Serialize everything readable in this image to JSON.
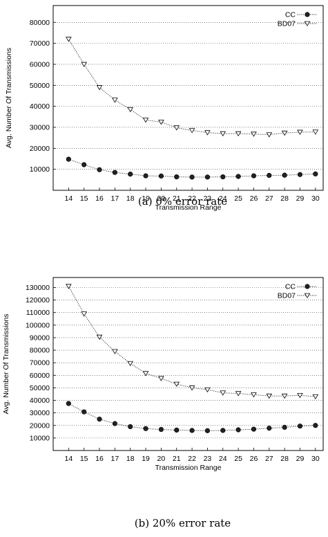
{
  "chart_data": [
    {
      "type": "line",
      "caption": "(a) 0% error rate",
      "xlabel": "Transmission Range",
      "ylabel": "Avg. Number Of Transmissions",
      "x": [
        14,
        15,
        16,
        17,
        18,
        19,
        20,
        21,
        22,
        23,
        24,
        25,
        26,
        27,
        28,
        29,
        30
      ],
      "xlim": [
        13,
        30.5
      ],
      "ylim": [
        0,
        88000
      ],
      "yticks": [
        10000,
        20000,
        30000,
        40000,
        50000,
        60000,
        70000,
        80000
      ],
      "grid": "horizontal dotted",
      "legend_position": "top-right",
      "series": [
        {
          "name": "CC",
          "marker": "circle",
          "values": [
            14800,
            12200,
            9800,
            8500,
            7700,
            6900,
            6800,
            6400,
            6300,
            6300,
            6400,
            6600,
            6900,
            7100,
            7200,
            7500,
            7800
          ]
        },
        {
          "name": "BD07",
          "marker": "triangle-down",
          "values": [
            72000,
            60000,
            49000,
            43000,
            38500,
            33500,
            32500,
            29800,
            28500,
            27500,
            27000,
            27000,
            26800,
            26500,
            27300,
            27700,
            27800
          ]
        }
      ]
    },
    {
      "type": "line",
      "caption": "(b) 20% error rate",
      "xlabel": "Transmission Range",
      "ylabel": "Avg. Number Of Transmissions",
      "x": [
        14,
        15,
        16,
        17,
        18,
        19,
        20,
        21,
        22,
        23,
        24,
        25,
        26,
        27,
        28,
        29,
        30
      ],
      "xlim": [
        13,
        30.5
      ],
      "ylim": [
        0,
        138000
      ],
      "yticks": [
        10000,
        20000,
        30000,
        40000,
        50000,
        60000,
        70000,
        80000,
        90000,
        100000,
        110000,
        120000,
        130000
      ],
      "grid": "horizontal dotted",
      "legend_position": "top-right",
      "series": [
        {
          "name": "CC",
          "marker": "circle",
          "values": [
            37500,
            30800,
            25000,
            21500,
            19000,
            17500,
            16800,
            16300,
            16000,
            15800,
            16000,
            16500,
            17000,
            17800,
            18500,
            19500,
            20000
          ]
        },
        {
          "name": "BD07",
          "marker": "triangle-down",
          "values": [
            131000,
            109000,
            90500,
            79000,
            69500,
            61500,
            57500,
            53000,
            50000,
            48500,
            46000,
            45500,
            44500,
            43500,
            43500,
            44000,
            43000
          ]
        }
      ]
    }
  ]
}
